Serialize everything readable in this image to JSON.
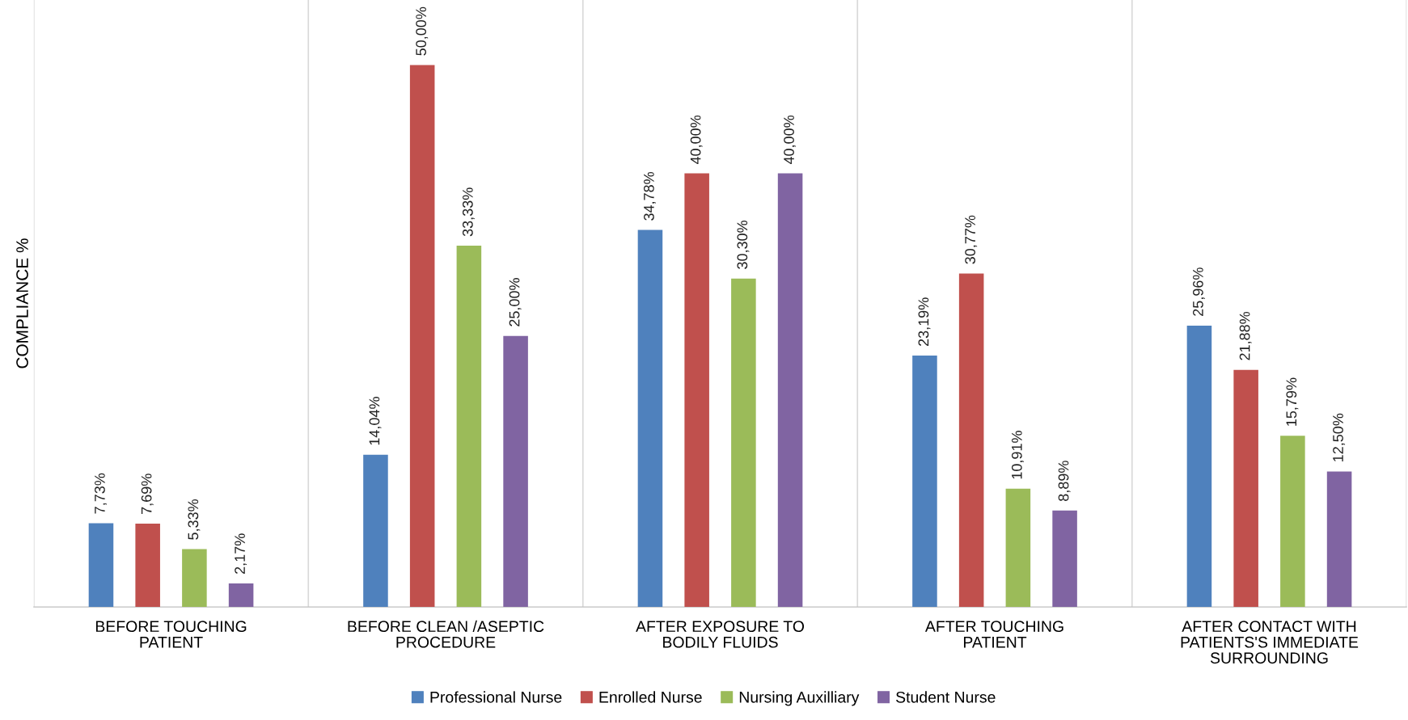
{
  "chart_data": {
    "type": "bar",
    "ylabel": "COMPLIANCE %",
    "categories": [
      "BEFORE TOUCHING\nPATIENT",
      "BEFORE CLEAN /ASEPTIC\nPROCEDURE",
      "AFTER EXPOSURE TO\nBODILY FLUIDS",
      "AFTER TOUCHING\nPATIENT",
      "AFTER CONTACT WITH\nPATIENTS'S IMMEDIATE\nSURROUNDING"
    ],
    "series": [
      {
        "name": "Professional Nurse",
        "color": "#4f81bd",
        "values": [
          7.73,
          14.04,
          34.78,
          23.19,
          25.96
        ],
        "value_labels": [
          "7,73%",
          "14,04%",
          "34,78%",
          "23,19%",
          "25,96%"
        ]
      },
      {
        "name": "Enrolled Nurse",
        "color": "#c0504d",
        "values": [
          7.69,
          50.0,
          40.0,
          30.77,
          21.88
        ],
        "value_labels": [
          "7,69%",
          "50,00%",
          "40,00%",
          "30,77%",
          "21,88%"
        ]
      },
      {
        "name": "Nursing Auxilliary",
        "color": "#9bbb59",
        "values": [
          5.33,
          33.33,
          30.3,
          10.91,
          15.79
        ],
        "value_labels": [
          "5,33%",
          "33,33%",
          "30,30%",
          "10,91%",
          "15,79%"
        ]
      },
      {
        "name": "Student Nurse",
        "color": "#8064a2",
        "values": [
          2.17,
          25.0,
          40.0,
          8.89,
          12.5
        ],
        "value_labels": [
          "2,17%",
          "25,00%",
          "40,00%",
          "8,89%",
          "12,50%"
        ]
      }
    ],
    "grid": "x",
    "legend": "bottom"
  }
}
